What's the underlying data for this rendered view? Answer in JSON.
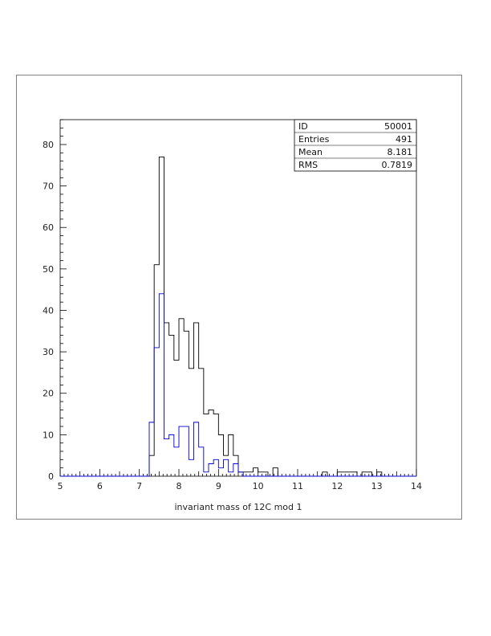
{
  "chart_data": {
    "type": "histogram",
    "title": "",
    "xlabel": "invariant mass of 12C mod 1",
    "ylabel": "",
    "xlim": [
      5,
      14
    ],
    "ylim": [
      0,
      86
    ],
    "x_ticks": [
      5,
      6,
      7,
      8,
      9,
      10,
      11,
      12,
      13,
      14
    ],
    "y_ticks": [
      0,
      10,
      20,
      30,
      40,
      50,
      60,
      70,
      80
    ],
    "grid": false,
    "bin_edges": [
      5.0,
      5.125,
      5.25,
      5.375,
      5.5,
      5.625,
      5.75,
      5.875,
      6.0,
      6.125,
      6.25,
      6.375,
      6.5,
      6.625,
      6.75,
      6.875,
      7.0,
      7.125,
      7.25,
      7.375,
      7.5,
      7.625,
      7.75,
      7.875,
      8.0,
      8.125,
      8.25,
      8.375,
      8.5,
      8.625,
      8.75,
      8.875,
      9.0,
      9.125,
      9.25,
      9.375,
      9.5,
      9.625,
      9.75,
      9.875,
      10.0,
      10.125,
      10.25,
      10.375,
      10.5,
      10.625,
      10.75,
      10.875,
      11.0,
      11.125,
      11.25,
      11.375,
      11.5,
      11.625,
      11.75,
      11.875,
      12.0,
      12.125,
      12.25,
      12.375,
      12.5,
      12.625,
      12.75,
      12.875,
      13.0,
      13.125,
      13.25,
      13.375,
      13.5,
      13.625,
      13.75,
      13.875,
      14.0
    ],
    "series": [
      {
        "color": "#000000",
        "values": [
          0,
          0,
          0,
          0,
          0,
          0,
          0,
          0,
          0,
          0,
          0,
          0,
          0,
          0,
          0,
          0,
          0,
          0,
          5,
          51,
          77,
          37,
          34,
          28,
          38,
          35,
          26,
          37,
          26,
          15,
          16,
          15,
          10,
          5,
          10,
          5,
          1,
          1,
          1,
          2,
          1,
          1,
          0,
          2,
          0,
          0,
          0,
          0,
          0,
          0,
          0,
          0,
          0,
          1,
          0,
          0,
          1,
          1,
          1,
          1,
          0,
          1,
          1,
          0,
          1,
          0,
          0,
          0,
          0,
          0,
          0,
          0
        ]
      },
      {
        "color": "#0000cc",
        "values": [
          0,
          0,
          0,
          0,
          0,
          0,
          0,
          0,
          0,
          0,
          0,
          0,
          0,
          0,
          0,
          0,
          0,
          0,
          13,
          31,
          44,
          9,
          10,
          7,
          12,
          12,
          4,
          13,
          7,
          1,
          3,
          4,
          2,
          4,
          1,
          3,
          1,
          0,
          0,
          0,
          0,
          0,
          0,
          0,
          0,
          0,
          0,
          0,
          0,
          0,
          0,
          0,
          0,
          0,
          0,
          0,
          0,
          0,
          0,
          0,
          0,
          0,
          0,
          0,
          0,
          0,
          0,
          0,
          0,
          0,
          0,
          0
        ]
      }
    ],
    "stats_box": [
      {
        "label": "ID",
        "value": "50001"
      },
      {
        "label": "Entries",
        "value": "491"
      },
      {
        "label": "Mean",
        "value": "8.181"
      },
      {
        "label": "RMS",
        "value": "0.7819"
      }
    ]
  }
}
